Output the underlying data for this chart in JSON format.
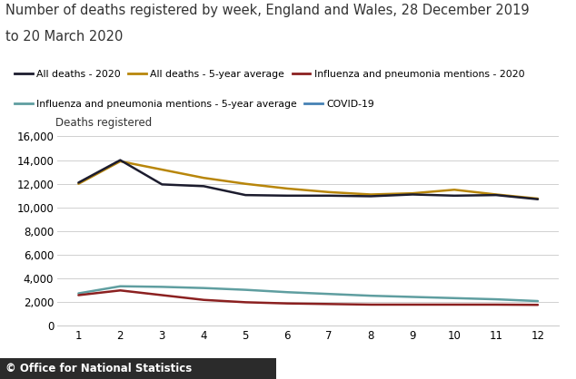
{
  "title_line1": "Number of deaths registered by week, England and Wales, 28 December 2019",
  "title_line2": "to 20 March 2020",
  "ylabel": "Deaths registered",
  "x_ticks": [
    1,
    2,
    3,
    4,
    5,
    6,
    7,
    8,
    9,
    10,
    11,
    12
  ],
  "ylim": [
    0,
    16000
  ],
  "yticks": [
    0,
    2000,
    4000,
    6000,
    8000,
    10000,
    12000,
    14000,
    16000
  ],
  "background_color": "#ffffff",
  "all_deaths_2020": {
    "x": [
      1,
      2,
      3,
      4,
      5,
      6,
      7,
      8,
      9,
      10,
      11,
      12
    ],
    "y": [
      12100,
      14000,
      11950,
      11800,
      11050,
      11000,
      11000,
      10950,
      11100,
      11000,
      11050,
      10700
    ],
    "color": "#1c1c2e",
    "label": "All deaths - 2020",
    "linewidth": 1.8
  },
  "all_deaths_5yr": {
    "x": [
      1,
      2,
      3,
      4,
      5,
      6,
      7,
      8,
      9,
      10,
      11,
      12
    ],
    "y": [
      12000,
      13900,
      13200,
      12500,
      12000,
      11600,
      11300,
      11100,
      11200,
      11500,
      11100,
      10750
    ],
    "color": "#b8860b",
    "label": "All deaths - 5-year average",
    "linewidth": 1.8
  },
  "influenza_2020": {
    "x": [
      1,
      2,
      3,
      4,
      5,
      6,
      7,
      8,
      9,
      10,
      11,
      12
    ],
    "y": [
      2600,
      3000,
      2600,
      2200,
      2000,
      1900,
      1850,
      1800,
      1800,
      1800,
      1800,
      1780
    ],
    "color": "#8b2020",
    "label": "Influenza and pneumonia mentions - 2020",
    "linewidth": 1.8
  },
  "influenza_5yr": {
    "x": [
      1,
      2,
      3,
      4,
      5,
      6,
      7,
      8,
      9,
      10,
      11,
      12
    ],
    "y": [
      2750,
      3350,
      3300,
      3200,
      3050,
      2850,
      2700,
      2550,
      2450,
      2350,
      2250,
      2100
    ],
    "color": "#5f9ea0",
    "label": "Influenza and pneumonia mentions - 5-year average",
    "linewidth": 1.8
  },
  "covid19": {
    "x": [],
    "y": [],
    "color": "#4682b4",
    "label": "COVID-19",
    "linewidth": 1.8
  },
  "footer_text": "© Office for National Statistics",
  "footer_bg": "#2b2b2b",
  "footer_color": "#ffffff",
  "title_fontsize": 10.5,
  "tick_fontsize": 8.5,
  "ylabel_fontsize": 8.5,
  "legend_fontsize": 7.8
}
